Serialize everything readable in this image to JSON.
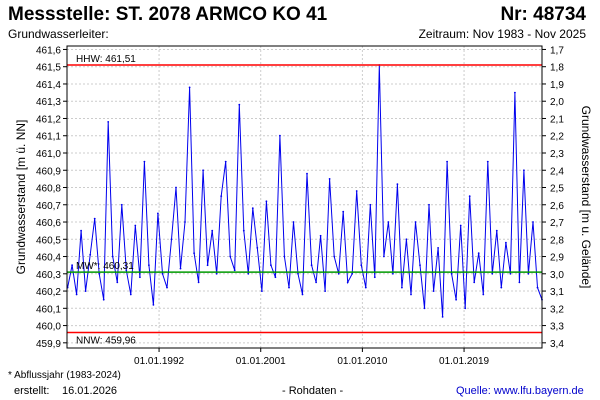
{
  "header": {
    "title": "Messstelle: ST. 2078 ARMCO KO 41",
    "number": "Nr: 48734",
    "aquifer": "Grundwasserleiter:",
    "period": "Zeitraum: Nov 1983 - Nov 2025"
  },
  "footer": {
    "footnote": "* Abflussjahr (1983-2024)",
    "created_label": "erstellt:",
    "created_date": "16.01.2026",
    "raw": "- Rohdaten -",
    "source": "Quelle: www.lfu.bayern.de"
  },
  "colors": {
    "series": "#0000ee",
    "extreme": "#ff0000",
    "mean": "#009900",
    "grid": "#cccccc"
  },
  "chart_data": {
    "type": "line",
    "ylabel_left": "Grundwasserstand [m ü. NN]",
    "ylabel_right": "Grundwasserstand [m u. Gelände]",
    "xlim": [
      1983.85,
      2025.9
    ],
    "ylim": [
      459.87,
      461.62
    ],
    "left_ticks": [
      {
        "v": 459.9,
        "l": "459,9"
      },
      {
        "v": 460.0,
        "l": "460,0"
      },
      {
        "v": 460.1,
        "l": "460,1"
      },
      {
        "v": 460.2,
        "l": "460,2"
      },
      {
        "v": 460.3,
        "l": "460,3"
      },
      {
        "v": 460.4,
        "l": "460,4"
      },
      {
        "v": 460.5,
        "l": "460,5"
      },
      {
        "v": 460.6,
        "l": "460,6"
      },
      {
        "v": 460.7,
        "l": "460,7"
      },
      {
        "v": 460.8,
        "l": "460,8"
      },
      {
        "v": 460.9,
        "l": "460,9"
      },
      {
        "v": 461.0,
        "l": "461,0"
      },
      {
        "v": 461.1,
        "l": "461,1"
      },
      {
        "v": 461.2,
        "l": "461,2"
      },
      {
        "v": 461.3,
        "l": "461,3"
      },
      {
        "v": 461.4,
        "l": "461,4"
      },
      {
        "v": 461.5,
        "l": "461,5"
      },
      {
        "v": 461.6,
        "l": "461,6"
      }
    ],
    "right_ticks": [
      {
        "v": 461.6,
        "l": "1,7"
      },
      {
        "v": 461.5,
        "l": "1,8"
      },
      {
        "v": 461.4,
        "l": "1,9"
      },
      {
        "v": 461.3,
        "l": "2,0"
      },
      {
        "v": 461.2,
        "l": "2,1"
      },
      {
        "v": 461.1,
        "l": "2,2"
      },
      {
        "v": 461.0,
        "l": "2,3"
      },
      {
        "v": 460.9,
        "l": "2,4"
      },
      {
        "v": 460.8,
        "l": "2,5"
      },
      {
        "v": 460.7,
        "l": "2,6"
      },
      {
        "v": 460.6,
        "l": "2,7"
      },
      {
        "v": 460.5,
        "l": "2,8"
      },
      {
        "v": 460.4,
        "l": "2,9"
      },
      {
        "v": 460.3,
        "l": "3,0"
      },
      {
        "v": 460.2,
        "l": "3,1"
      },
      {
        "v": 460.1,
        "l": "3,2"
      },
      {
        "v": 460.0,
        "l": "3,3"
      },
      {
        "v": 459.9,
        "l": "3,4"
      }
    ],
    "x_ticks": [
      {
        "v": 1992.0,
        "l": "01.01.1992"
      },
      {
        "v": 2001.0,
        "l": "01.01.2001"
      },
      {
        "v": 2010.0,
        "l": "01.01.2010"
      },
      {
        "v": 2019.0,
        "l": "01.01.2019"
      }
    ],
    "reference_lines": [
      {
        "name": "HHW",
        "label": "HHW: 461,51",
        "value": 461.51,
        "kind": "extreme"
      },
      {
        "name": "MW",
        "label": "MW*: 460,31",
        "value": 460.31,
        "kind": "mean"
      },
      {
        "name": "NNW",
        "label": "NNW: 459,96",
        "value": 459.96,
        "kind": "extreme"
      }
    ],
    "series": [
      {
        "name": "Grundwasserstand",
        "x": [
          1983.9,
          1984.3,
          1984.7,
          1985.1,
          1985.5,
          1985.9,
          1986.3,
          1986.7,
          1987.1,
          1987.5,
          1987.9,
          1988.3,
          1988.7,
          1989.1,
          1989.5,
          1989.9,
          1990.3,
          1990.7,
          1991.1,
          1991.5,
          1991.9,
          1992.3,
          1992.7,
          1993.1,
          1993.5,
          1993.9,
          1994.3,
          1994.7,
          1995.1,
          1995.5,
          1995.9,
          1996.3,
          1996.7,
          1997.1,
          1997.5,
          1997.9,
          1998.3,
          1998.7,
          1999.1,
          1999.5,
          1999.9,
          2000.3,
          2000.7,
          2001.1,
          2001.5,
          2001.9,
          2002.3,
          2002.7,
          2003.1,
          2003.5,
          2003.9,
          2004.3,
          2004.7,
          2005.1,
          2005.5,
          2005.9,
          2006.3,
          2006.7,
          2007.1,
          2007.5,
          2007.9,
          2008.3,
          2008.7,
          2009.1,
          2009.5,
          2009.9,
          2010.3,
          2010.7,
          2011.1,
          2011.5,
          2011.9,
          2012.3,
          2012.7,
          2013.1,
          2013.5,
          2013.9,
          2014.3,
          2014.7,
          2015.1,
          2015.5,
          2015.9,
          2016.3,
          2016.7,
          2017.1,
          2017.5,
          2017.9,
          2018.3,
          2018.7,
          2019.1,
          2019.5,
          2019.9,
          2020.3,
          2020.7,
          2021.1,
          2021.5,
          2021.9,
          2022.3,
          2022.7,
          2023.1,
          2023.5,
          2023.9,
          2024.3,
          2024.7,
          2025.1,
          2025.5,
          2025.9
        ],
        "y": [
          460.22,
          460.35,
          460.18,
          460.55,
          460.2,
          460.41,
          460.62,
          460.3,
          460.15,
          461.18,
          460.4,
          460.25,
          460.7,
          460.32,
          460.18,
          460.58,
          460.28,
          460.95,
          460.35,
          460.12,
          460.65,
          460.3,
          460.22,
          460.5,
          460.8,
          460.33,
          460.6,
          461.38,
          460.42,
          460.25,
          460.9,
          460.35,
          460.55,
          460.3,
          460.75,
          460.95,
          460.4,
          460.32,
          461.28,
          460.55,
          460.3,
          460.68,
          460.45,
          460.2,
          460.72,
          460.35,
          460.28,
          461.1,
          460.4,
          460.22,
          460.6,
          460.3,
          460.18,
          460.88,
          460.35,
          460.25,
          460.52,
          460.2,
          460.85,
          460.4,
          460.3,
          460.66,
          460.25,
          460.3,
          460.78,
          460.35,
          460.22,
          460.7,
          460.28,
          461.51,
          460.4,
          460.6,
          460.3,
          460.82,
          460.22,
          460.5,
          460.18,
          460.6,
          460.35,
          460.1,
          460.7,
          460.2,
          460.45,
          460.05,
          460.95,
          460.3,
          460.15,
          460.58,
          460.1,
          460.75,
          460.25,
          460.42,
          460.18,
          460.95,
          460.3,
          460.55,
          460.22,
          460.48,
          460.3,
          461.35,
          460.25,
          460.9,
          460.3,
          460.6,
          460.22,
          460.15
        ]
      }
    ]
  }
}
